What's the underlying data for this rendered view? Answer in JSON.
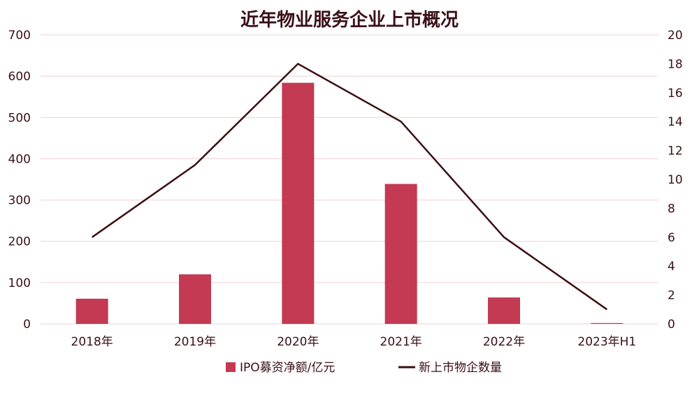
{
  "chart_data": {
    "type": "bar",
    "title": "近年物业服务企业上市概况",
    "categories": [
      "2018年",
      "2019年",
      "2020年",
      "2021年",
      "2022年",
      "2023年H1"
    ],
    "series": [
      {
        "name": "IPO募资净额/亿元",
        "type": "bar",
        "axis": "left",
        "color": "#c33a52",
        "values": [
          61,
          120,
          584,
          339,
          64,
          2
        ]
      },
      {
        "name": "新上市物企数量",
        "type": "line",
        "axis": "right",
        "color": "#3a0f12",
        "values": [
          6,
          11,
          18,
          14,
          6,
          1
        ]
      }
    ],
    "y_left": {
      "ylim": [
        0,
        700
      ],
      "ticks": [
        "0",
        "100",
        "200",
        "300",
        "400",
        "500",
        "600",
        "700"
      ]
    },
    "y_right": {
      "ylim": [
        0,
        20
      ],
      "ticks": [
        "0",
        "2",
        "4",
        "6",
        "8",
        "10",
        "12",
        "14",
        "16",
        "18",
        "20"
      ]
    },
    "grid": "horizontal",
    "legend": "bottom",
    "colors": {
      "gridline": "#f2cfd4",
      "text": "#3a1016"
    }
  }
}
